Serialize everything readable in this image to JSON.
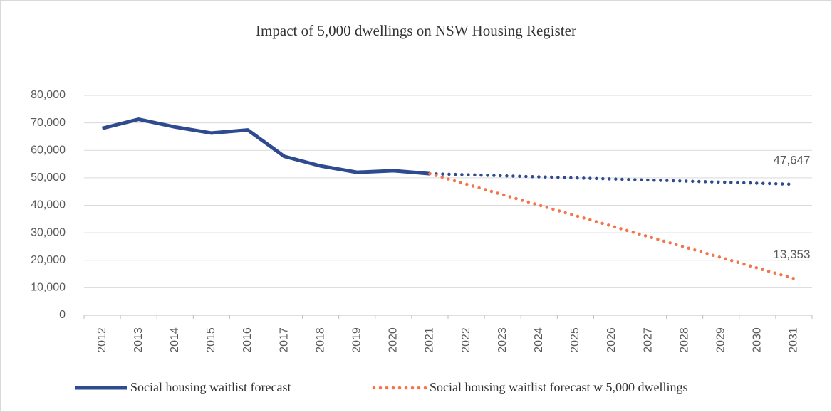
{
  "chart_data": {
    "type": "line",
    "title": "Impact of 5,000 dwellings on NSW Housing Register",
    "categories": [
      "2012",
      "2013",
      "2014",
      "2015",
      "2016",
      "2017",
      "2018",
      "2019",
      "2020",
      "2021",
      "2022",
      "2023",
      "2024",
      "2025",
      "2026",
      "2027",
      "2028",
      "2029",
      "2030",
      "2031"
    ],
    "series": [
      {
        "name": "Social housing waitlist forecast",
        "color": "#2f4b8f",
        "style": "solid",
        "dotted_after": "2021",
        "values": [
          68000,
          71300,
          68500,
          66300,
          67400,
          57800,
          54300,
          52000,
          52600,
          51500,
          51115,
          50729,
          50344,
          49959,
          49574,
          49188,
          48803,
          48418,
          48032,
          47647
        ],
        "value_labels": [
          null,
          null,
          null,
          null,
          null,
          null,
          null,
          null,
          null,
          null,
          null,
          null,
          null,
          null,
          null,
          null,
          null,
          null,
          null,
          "47,647"
        ]
      },
      {
        "name": "Social housing waitlist forecast w 5,000 dwellings",
        "color": "#f4754a",
        "style": "dotted",
        "values": [
          null,
          null,
          null,
          null,
          null,
          null,
          null,
          null,
          null,
          51500,
          47685,
          43871,
          40056,
          36241,
          32427,
          28612,
          24797,
          20982,
          17168,
          13353
        ],
        "value_labels": [
          null,
          null,
          null,
          null,
          null,
          null,
          null,
          null,
          null,
          null,
          null,
          null,
          null,
          null,
          null,
          null,
          null,
          null,
          null,
          "13,353"
        ]
      }
    ],
    "ylim": [
      0,
      80000
    ],
    "yticks": [
      0,
      {
        "value": 10000,
        "label": "10,000"
      },
      {
        "value": 20000,
        "label": "20,000"
      },
      {
        "value": 30000,
        "label": "30,000"
      },
      {
        "value": 40000,
        "label": "40,000"
      },
      {
        "value": 50000,
        "label": "50,000"
      },
      {
        "value": 60000,
        "label": "60,000"
      },
      {
        "value": 70000,
        "label": "70,000"
      },
      {
        "value": 80000,
        "label": "80,000"
      }
    ],
    "grid": true,
    "legend": "bottom"
  }
}
